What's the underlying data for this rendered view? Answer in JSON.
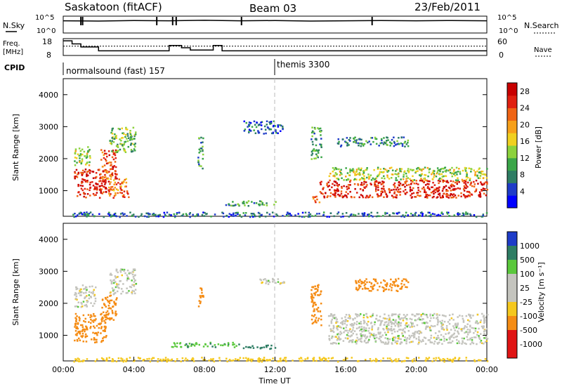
{
  "header": {
    "station": "Saskatoon (fitACF)",
    "beam": "Beam 03",
    "date": "23/Feb/2011"
  },
  "chart_data": [
    {
      "type": "line",
      "panel": "nsky-nsearch",
      "left_label": "N.Sky",
      "right_label": "N.Search",
      "left_ticks": [
        "10^5",
        "10^0"
      ],
      "right_ticks": [
        "10^5",
        "10^0"
      ],
      "x": [
        0,
        2,
        4,
        6,
        8,
        10,
        12,
        14,
        16,
        18,
        20,
        22,
        24
      ],
      "series": [
        {
          "values": [
            4.0,
            3.9,
            4.1,
            4.0,
            4.2,
            4.0,
            4.1,
            3.9,
            4.0,
            4.1,
            4.0,
            4.1,
            4.0
          ]
        }
      ]
    },
    {
      "type": "line",
      "panel": "freq-nave",
      "left_label": "Freq. [MHz]",
      "right_label": "Nave",
      "left_ticks": [
        "18",
        "8"
      ],
      "right_ticks": [
        "60",
        "0"
      ],
      "ylim_left": [
        8,
        18
      ],
      "ylim_right": [
        0,
        60
      ],
      "freq_steps": [
        {
          "t0": 0.0,
          "t1": 0.5,
          "freq": 17.5
        },
        {
          "t0": 0.5,
          "t1": 1.0,
          "freq": 15.5
        },
        {
          "t0": 1.0,
          "t1": 2.0,
          "freq": 13.5
        },
        {
          "t0": 2.0,
          "t1": 6.0,
          "freq": 11.0
        },
        {
          "t0": 6.0,
          "t1": 6.7,
          "freq": 14.5
        },
        {
          "t0": 6.7,
          "t1": 7.2,
          "freq": 13.0
        },
        {
          "t0": 7.2,
          "t1": 8.5,
          "freq": 11.5
        },
        {
          "t0": 8.5,
          "t1": 9.0,
          "freq": 14.5
        },
        {
          "t0": 9.0,
          "t1": 24.0,
          "freq": 11.0
        }
      ],
      "nave": 36
    },
    {
      "type": "table",
      "panel": "cpid",
      "label": "CPID",
      "segments": [
        {
          "name": "normalsound (fast) 157",
          "start": 0,
          "end": 12
        },
        {
          "name": "themis 3300",
          "start": 12,
          "end": 24
        }
      ]
    },
    {
      "type": "heatmap",
      "panel": "power",
      "ylabel": "Slant Range [km]",
      "yticks": [
        1000,
        2000,
        3000,
        4000
      ],
      "ylim": [
        200,
        4500
      ],
      "xlim": [
        0,
        24
      ],
      "colorbar": {
        "label": "Power [dB]",
        "ticks": [
          4,
          8,
          12,
          16,
          20,
          24,
          28
        ],
        "range": [
          0,
          30
        ]
      },
      "regions": [
        {
          "t": [
            0.6,
            2.4
          ],
          "r": [
            800,
            1700
          ],
          "v": 26
        },
        {
          "t": [
            0.6,
            1.5
          ],
          "r": [
            1800,
            2400
          ],
          "v": 14
        },
        {
          "t": [
            2.1,
            3.0
          ],
          "r": [
            1300,
            2300
          ],
          "v": 24
        },
        {
          "t": [
            2.5,
            3.7
          ],
          "r": [
            800,
            1400
          ],
          "v": 22
        },
        {
          "t": [
            2.6,
            4.1
          ],
          "r": [
            2200,
            3000
          ],
          "v": 12
        },
        {
          "t": [
            7.6,
            7.9
          ],
          "r": [
            1700,
            2700
          ],
          "v": 10
        },
        {
          "t": [
            9.0,
            12.0
          ],
          "r": [
            550,
            700
          ],
          "v": 10
        },
        {
          "t": [
            10.2,
            12.4
          ],
          "r": [
            2800,
            3200
          ],
          "v": 6
        },
        {
          "t": [
            14.0,
            14.6
          ],
          "r": [
            2000,
            3000
          ],
          "v": 10
        },
        {
          "t": [
            14.1,
            14.5
          ],
          "r": [
            650,
            900
          ],
          "v": 24
        },
        {
          "t": [
            14.5,
            24.0
          ],
          "r": [
            800,
            1350
          ],
          "v": 26
        },
        {
          "t": [
            15.0,
            24.0
          ],
          "r": [
            1350,
            1750
          ],
          "v": 14
        },
        {
          "t": [
            15.5,
            19.5
          ],
          "r": [
            2400,
            2700
          ],
          "v": 8
        },
        {
          "t": [
            0.5,
            24.0
          ],
          "r": [
            200,
            350
          ],
          "v": 6
        }
      ]
    },
    {
      "type": "heatmap",
      "panel": "velocity",
      "ylabel": "Slant Range [km]",
      "yticks": [
        1000,
        2000,
        3000,
        4000
      ],
      "ylim": [
        200,
        4500
      ],
      "xlim": [
        0,
        24
      ],
      "xticks": [
        "00:00",
        "04:00",
        "08:00",
        "12:00",
        "16:00",
        "20:00",
        "00:00"
      ],
      "xlabel": "Time UT",
      "colorbar": {
        "label": "Velocity [m s⁻¹]",
        "ticks": [
          1000,
          500,
          100,
          25,
          -25,
          -100,
          -500,
          -1000
        ]
      },
      "regions": [
        {
          "t": [
            0.6,
            2.4
          ],
          "r": [
            800,
            1700
          ],
          "v": -300
        },
        {
          "t": [
            0.6,
            1.8
          ],
          "r": [
            1900,
            2600
          ],
          "v": 0
        },
        {
          "t": [
            2.1,
            3.0
          ],
          "r": [
            1500,
            2300
          ],
          "v": -200
        },
        {
          "t": [
            2.6,
            4.1
          ],
          "r": [
            2300,
            3100
          ],
          "v": 0
        },
        {
          "t": [
            7.6,
            7.9
          ],
          "r": [
            1900,
            2600
          ],
          "v": -150
        },
        {
          "t": [
            6.0,
            10.0
          ],
          "r": [
            650,
            800
          ],
          "v": 80
        },
        {
          "t": [
            10.0,
            12.0
          ],
          "r": [
            600,
            720
          ],
          "v": 150
        },
        {
          "t": [
            11.0,
            12.5
          ],
          "r": [
            2600,
            2800
          ],
          "v": 0
        },
        {
          "t": [
            14.0,
            14.6
          ],
          "r": [
            1300,
            2600
          ],
          "v": -300
        },
        {
          "t": [
            15.0,
            24.0
          ],
          "r": [
            750,
            1700
          ],
          "v": 0
        },
        {
          "t": [
            16.5,
            19.5
          ],
          "r": [
            2400,
            2800
          ],
          "v": -200
        },
        {
          "t": [
            0.5,
            24.0
          ],
          "r": [
            200,
            330
          ],
          "v": -60
        }
      ]
    }
  ]
}
